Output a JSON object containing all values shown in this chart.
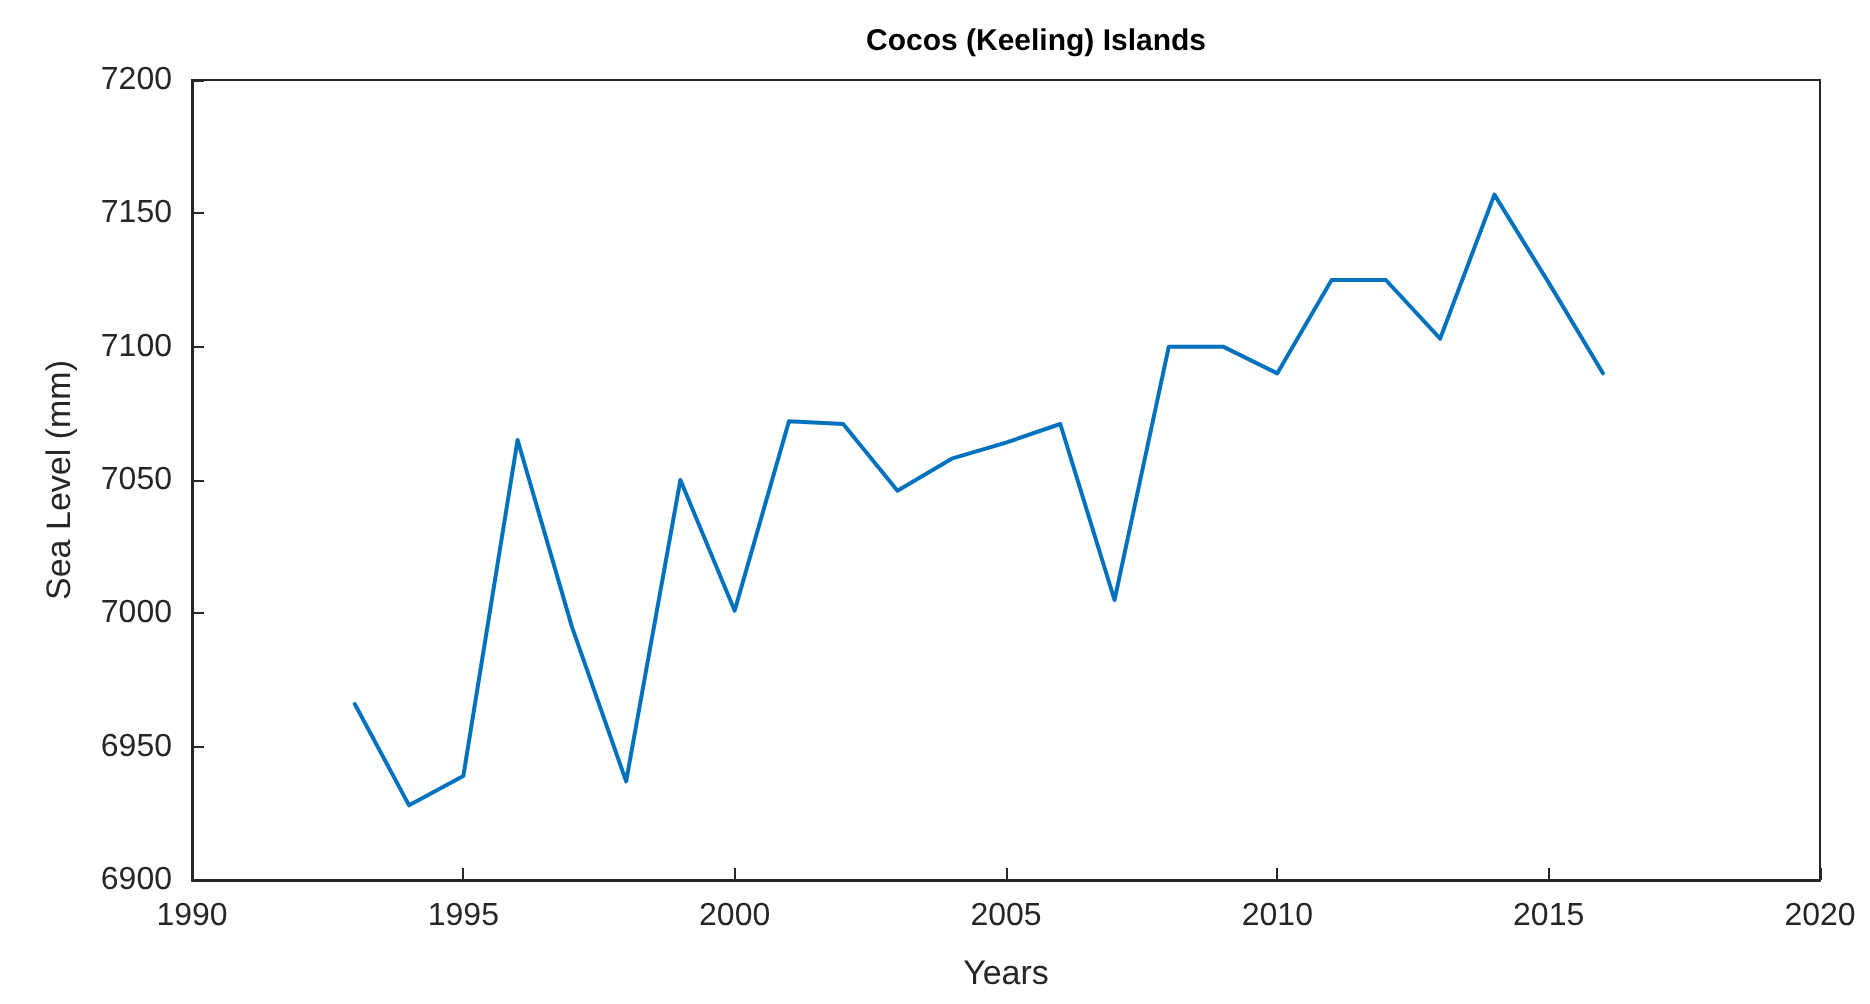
{
  "chart_data": {
    "type": "line",
    "title": "Cocos (Keeling) Islands",
    "xlabel": "Years",
    "ylabel": "Sea Level (mm)",
    "x": [
      1993,
      1994,
      1995,
      1996,
      1997,
      1998,
      1999,
      2000,
      2001,
      2002,
      2003,
      2004,
      2005,
      2006,
      2007,
      2008,
      2009,
      2010,
      2011,
      2012,
      2013,
      2014,
      2015,
      2016
    ],
    "series": [
      {
        "color": "#0072bd",
        "values": [
          6966,
          6928,
          6939,
          7065,
          6995,
          6937,
          7050,
          7001,
          7072,
          7071,
          7046,
          7058,
          7064,
          7071,
          7005,
          7100,
          7100,
          7090,
          7125,
          7125,
          7103,
          7157,
          7124,
          7090
        ]
      }
    ],
    "xlim": [
      1990,
      2020
    ],
    "xticks": [
      1990,
      1995,
      2000,
      2005,
      2010,
      2015,
      2020
    ],
    "ylim": [
      6900,
      7200
    ],
    "yticks": [
      6900,
      6950,
      7000,
      7050,
      7100,
      7150,
      7200
    ],
    "grid": false,
    "marker": "none",
    "line_style": "solid"
  }
}
